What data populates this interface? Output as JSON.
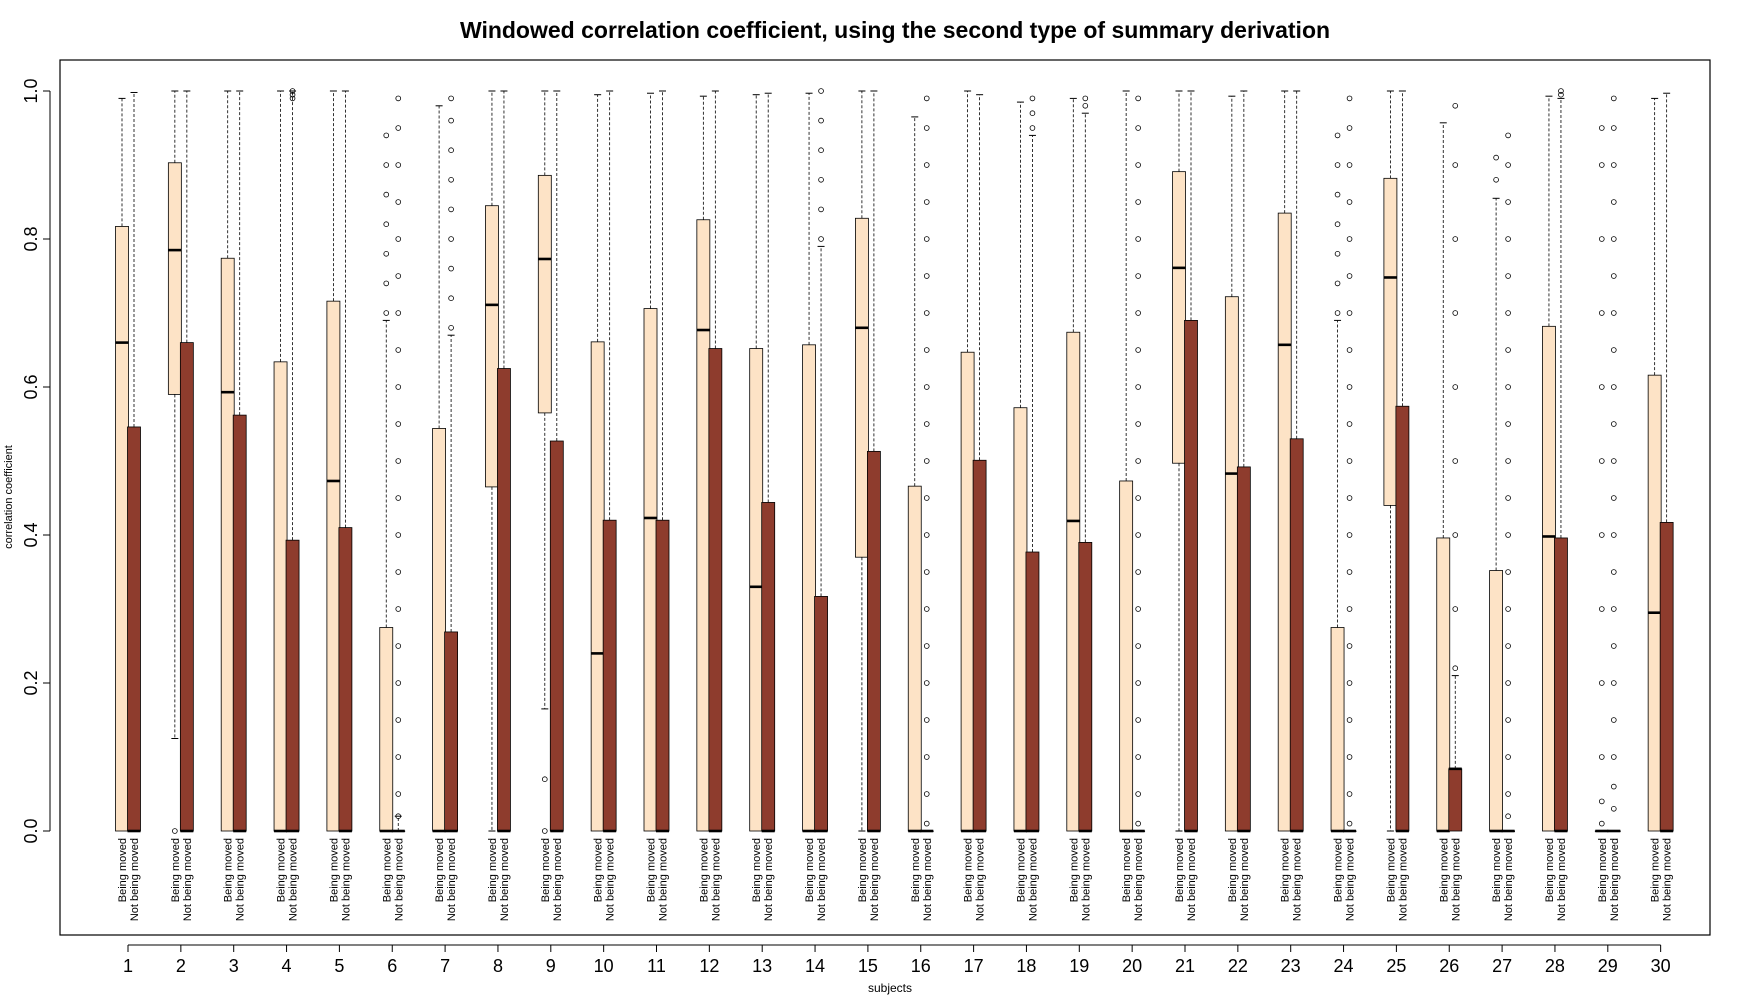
{
  "chart_data": {
    "type": "boxplot",
    "title": "Windowed correlation coefficient, using the second type of summary derivation",
    "xlabel": "subjects",
    "ylabel": "correlation coefficient",
    "ylim": [
      0,
      1
    ],
    "y_ticks": [
      "0.0",
      "0.2",
      "0.4",
      "0.6",
      "0.8",
      "1.0"
    ],
    "groups": [
      "Being moved",
      "Not being moved"
    ],
    "group_colors": {
      "Being moved": "#fde3c6",
      "Not being moved": "#8e3c2d"
    },
    "categories": [
      "1",
      "2",
      "3",
      "4",
      "5",
      "6",
      "7",
      "8",
      "9",
      "10",
      "11",
      "12",
      "13",
      "14",
      "15",
      "16",
      "17",
      "18",
      "19",
      "20",
      "21",
      "22",
      "23",
      "24",
      "25",
      "26",
      "27",
      "28",
      "29",
      "30"
    ],
    "series": [
      {
        "name": "Being moved",
        "q1": [
          0.0,
          0.59,
          0.0,
          0.0,
          0.0,
          0.0,
          0.0,
          0.465,
          0.565,
          0.0,
          0.0,
          0.0,
          0.0,
          0.0,
          0.37,
          0.0,
          0.0,
          0.0,
          0.0,
          0.0,
          0.497,
          0.0,
          0.0,
          0.0,
          0.44,
          0.0,
          0.0,
          0.0,
          0.0,
          0.0
        ],
        "median": [
          0.66,
          0.785,
          0.593,
          0.0,
          0.473,
          0.0,
          0.0,
          0.711,
          0.773,
          0.24,
          0.423,
          0.677,
          0.33,
          0.0,
          0.68,
          0.0,
          0.0,
          0.0,
          0.419,
          0.0,
          0.761,
          0.483,
          0.657,
          0.0,
          0.748,
          0.0,
          0.0,
          0.398,
          0.0,
          0.295
        ],
        "q3": [
          0.817,
          0.903,
          0.774,
          0.634,
          0.716,
          0.275,
          0.544,
          0.845,
          0.886,
          0.661,
          0.706,
          0.826,
          0.652,
          0.657,
          0.828,
          0.466,
          0.647,
          0.572,
          0.674,
          0.473,
          0.891,
          0.722,
          0.835,
          0.275,
          0.882,
          0.396,
          0.352,
          0.682,
          0.0,
          0.616
        ],
        "whisker_low": [
          0.0,
          0.125,
          0.0,
          0.0,
          0.0,
          0.0,
          0.0,
          0.0,
          0.165,
          0.0,
          0.0,
          0.0,
          0.0,
          0.0,
          0.0,
          0.0,
          0.0,
          0.0,
          0.0,
          0.0,
          0.0,
          0.0,
          0.0,
          0.0,
          0.0,
          0.0,
          0.0,
          0.0,
          0.0,
          0.0
        ],
        "whisker_high": [
          0.99,
          1.0,
          1.0,
          1.0,
          1.0,
          0.69,
          0.98,
          1.0,
          1.0,
          0.995,
          0.997,
          0.993,
          0.995,
          0.997,
          1.0,
          0.965,
          1.0,
          0.985,
          0.99,
          1.0,
          1.0,
          0.993,
          1.0,
          0.69,
          1.0,
          0.957,
          0.855,
          0.993,
          0.0,
          0.99
        ],
        "outliers": [
          [],
          [
            0.0
          ],
          [],
          [],
          [],
          [
            0.7,
            0.74,
            0.78,
            0.82,
            0.86,
            0.9,
            0.94
          ],
          [],
          [],
          [
            0.0,
            0.07
          ],
          [],
          [],
          [],
          [],
          [],
          [],
          [],
          [],
          [],
          [],
          [],
          [],
          [],
          [],
          [
            0.7,
            0.74,
            0.78,
            0.82,
            0.86,
            0.9,
            0.94
          ],
          [],
          [],
          [
            0.88,
            0.91
          ],
          [],
          [
            0.01,
            0.04,
            0.1,
            0.2,
            0.3,
            0.4,
            0.5,
            0.6,
            0.7,
            0.8,
            0.9,
            0.95
          ],
          []
        ]
      },
      {
        "name": "Not being moved",
        "q1": [
          0.0,
          0.0,
          0.0,
          0.0,
          0.0,
          0.0,
          0.0,
          0.0,
          0.0,
          0.0,
          0.0,
          0.0,
          0.0,
          0.0,
          0.0,
          0.0,
          0.0,
          0.0,
          0.0,
          0.0,
          0.0,
          0.0,
          0.0,
          0.0,
          0.0,
          0.0,
          0.0,
          0.0,
          0.0,
          0.0
        ],
        "median": [
          0.0,
          0.0,
          0.0,
          0.0,
          0.0,
          0.0,
          0.0,
          0.0,
          0.0,
          0.0,
          0.0,
          0.0,
          0.0,
          0.0,
          0.0,
          0.0,
          0.0,
          0.0,
          0.0,
          0.0,
          0.0,
          0.0,
          0.0,
          0.0,
          0.0,
          0.084,
          0.0,
          0.0,
          0.0,
          0.0
        ],
        "q3": [
          0.546,
          0.66,
          0.562,
          0.393,
          0.41,
          0.0,
          0.269,
          0.625,
          0.527,
          0.42,
          0.42,
          0.652,
          0.444,
          0.317,
          0.513,
          0.0,
          0.501,
          0.377,
          0.39,
          0.0,
          0.69,
          0.492,
          0.53,
          0.0,
          0.574,
          0.084,
          0.0,
          0.396,
          0.0,
          0.417
        ],
        "whisker_low": [
          0.0,
          0.0,
          0.0,
          0.0,
          0.0,
          0.0,
          0.0,
          0.0,
          0.0,
          0.0,
          0.0,
          0.0,
          0.0,
          0.0,
          0.0,
          0.0,
          0.0,
          0.0,
          0.0,
          0.0,
          0.0,
          0.0,
          0.0,
          0.0,
          0.0,
          0.0,
          0.0,
          0.0,
          0.0,
          0.0
        ],
        "whisker_high": [
          0.998,
          1.0,
          1.0,
          1.0,
          1.0,
          0.02,
          0.67,
          1.0,
          1.0,
          1.0,
          1.0,
          1.0,
          0.997,
          0.79,
          1.0,
          0.0,
          0.995,
          0.94,
          0.97,
          0.0,
          1.0,
          1.0,
          1.0,
          0.0,
          1.0,
          0.21,
          0.0,
          0.99,
          0.0,
          0.997
        ],
        "outliers": [
          [],
          [],
          [],
          [
            0.99,
            0.995,
            1.0
          ],
          [],
          [
            0.02,
            0.05,
            0.1,
            0.15,
            0.2,
            0.25,
            0.3,
            0.35,
            0.4,
            0.45,
            0.5,
            0.55,
            0.6,
            0.65,
            0.7,
            0.75,
            0.8,
            0.85,
            0.9,
            0.95,
            0.99
          ],
          [
            0.68,
            0.72,
            0.76,
            0.8,
            0.84,
            0.88,
            0.92,
            0.96,
            0.99
          ],
          [],
          [],
          [],
          [],
          [],
          [],
          [
            0.8,
            0.84,
            0.88,
            0.92,
            0.96,
            1.0
          ],
          [],
          [
            0.01,
            0.05,
            0.1,
            0.15,
            0.2,
            0.25,
            0.3,
            0.35,
            0.4,
            0.45,
            0.5,
            0.55,
            0.6,
            0.65,
            0.7,
            0.75,
            0.8,
            0.85,
            0.9,
            0.95,
            0.99
          ],
          [],
          [
            0.95,
            0.97,
            0.99
          ],
          [
            0.98,
            0.99
          ],
          [
            0.01,
            0.05,
            0.1,
            0.15,
            0.2,
            0.25,
            0.3,
            0.35,
            0.4,
            0.45,
            0.5,
            0.55,
            0.6,
            0.65,
            0.7,
            0.75,
            0.8,
            0.85,
            0.9,
            0.95,
            0.99
          ],
          [],
          [],
          [],
          [
            0.01,
            0.05,
            0.1,
            0.15,
            0.2,
            0.25,
            0.3,
            0.35,
            0.4,
            0.45,
            0.5,
            0.55,
            0.6,
            0.65,
            0.7,
            0.75,
            0.8,
            0.85,
            0.9,
            0.95,
            0.99
          ],
          [],
          [
            0.22,
            0.3,
            0.4,
            0.5,
            0.6,
            0.7,
            0.8,
            0.9,
            0.98
          ],
          [
            0.02,
            0.05,
            0.1,
            0.15,
            0.2,
            0.25,
            0.3,
            0.35,
            0.4,
            0.45,
            0.5,
            0.55,
            0.6,
            0.65,
            0.7,
            0.75,
            0.8,
            0.85,
            0.9,
            0.94
          ],
          [
            0.995,
            1.0
          ],
          [
            0.03,
            0.06,
            0.1,
            0.15,
            0.2,
            0.25,
            0.3,
            0.35,
            0.4,
            0.45,
            0.5,
            0.55,
            0.6,
            0.65,
            0.7,
            0.75,
            0.8,
            0.85,
            0.9,
            0.95,
            0.99
          ],
          []
        ]
      }
    ],
    "grid": false,
    "legend": "none"
  }
}
